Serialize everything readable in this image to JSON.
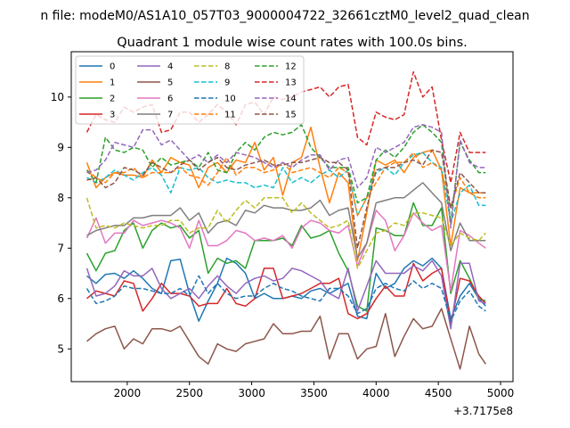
{
  "figure": {
    "suptitle": "n file: modeM0/AS1A10_057T03_9000004722_32661cztM0_level2_quad_clean",
    "title": "Quadrant 1 module wise count rates with 100.0s bins.",
    "offset_label": "+3.7175e8"
  },
  "chart_data": {
    "type": "line",
    "title": "Quadrant 1 module wise count rates with 100.0s bins.",
    "xlabel": "",
    "ylabel": "",
    "x_offset": 371750000,
    "xlim": [
      1550,
      5100
    ],
    "ylim": [
      4.35,
      10.9
    ],
    "x_ticks": [
      2000,
      2500,
      3000,
      3500,
      4000,
      4500,
      5000
    ],
    "y_ticks": [
      5,
      6,
      7,
      8,
      9,
      10
    ],
    "x_tick_labels": [
      "2000",
      "2500",
      "3000",
      "3500",
      "4000",
      "4500",
      "5000"
    ],
    "y_tick_labels": [
      "5",
      "6",
      "7",
      "8",
      "9",
      "10"
    ],
    "grid": false,
    "legend_position": "top-left",
    "x": [
      1675,
      1750,
      1825,
      1900,
      1975,
      2050,
      2125,
      2200,
      2275,
      2350,
      2425,
      2500,
      2575,
      2650,
      2725,
      2800,
      2875,
      2950,
      3025,
      3100,
      3175,
      3250,
      3325,
      3400,
      3475,
      3550,
      3625,
      3700,
      3775,
      3850,
      3925,
      4000,
      4075,
      4150,
      4225,
      4300,
      4375,
      4450,
      4525,
      4600,
      4675,
      4750,
      4825,
      4880
    ],
    "series": [
      {
        "name": "0",
        "color": "#1f77b4",
        "dash": false,
        "values": [
          6.45,
          6.3,
          6.48,
          6.5,
          6.4,
          6.55,
          6.4,
          6.2,
          6.1,
          6.75,
          6.78,
          6.1,
          5.55,
          5.95,
          6.3,
          6.8,
          6.7,
          6.5,
          6.0,
          6.1,
          6.0,
          6.0,
          6.05,
          6.0,
          6.15,
          6.2,
          6.1,
          6.2,
          6.3,
          5.65,
          5.6,
          6.5,
          6.2,
          6.3,
          6.6,
          6.75,
          6.65,
          6.8,
          6.6,
          5.6,
          6.05,
          6.3,
          6.0,
          5.85
        ]
      },
      {
        "name": "1",
        "color": "#ff7f0e",
        "dash": false,
        "values": [
          8.7,
          8.2,
          8.4,
          8.5,
          8.45,
          8.45,
          8.4,
          8.75,
          8.5,
          8.8,
          8.7,
          8.65,
          8.2,
          8.6,
          8.7,
          8.5,
          8.75,
          8.7,
          9.1,
          8.55,
          8.8,
          8.05,
          8.7,
          8.8,
          9.4,
          8.6,
          7.9,
          8.5,
          8.3,
          6.75,
          7.7,
          8.75,
          8.65,
          8.75,
          8.5,
          8.8,
          8.9,
          8.95,
          8.55,
          7.05,
          8.2,
          8.1,
          8.1,
          8.1
        ]
      },
      {
        "name": "2",
        "color": "#2ca02c",
        "dash": false,
        "values": [
          6.9,
          6.55,
          6.9,
          6.95,
          7.35,
          7.5,
          7.0,
          7.35,
          7.5,
          7.4,
          7.45,
          7.2,
          7.35,
          6.5,
          6.8,
          6.7,
          6.75,
          6.6,
          7.15,
          7.15,
          7.15,
          7.2,
          7.05,
          7.45,
          7.2,
          7.25,
          7.35,
          6.9,
          6.55,
          5.85,
          5.75,
          7.4,
          7.35,
          7.25,
          7.25,
          7.9,
          7.45,
          7.45,
          7.8,
          6.1,
          6.75,
          6.4,
          6.0,
          5.95
        ]
      },
      {
        "name": "3",
        "color": "#d62728",
        "dash": false,
        "values": [
          6.0,
          6.15,
          6.1,
          6.05,
          6.35,
          6.3,
          5.75,
          6.0,
          6.3,
          6.1,
          6.1,
          6.05,
          5.85,
          5.9,
          5.9,
          6.2,
          5.9,
          5.85,
          6.0,
          6.6,
          6.6,
          6.0,
          6.05,
          6.1,
          6.2,
          6.3,
          6.3,
          6.4,
          5.7,
          5.6,
          5.7,
          6.0,
          6.25,
          6.05,
          6.05,
          6.7,
          6.35,
          6.5,
          6.6,
          5.5,
          6.4,
          6.35,
          6.05,
          5.9
        ]
      },
      {
        "name": "4",
        "color": "#9467bd",
        "dash": false,
        "values": [
          6.6,
          6.05,
          6.1,
          6.25,
          6.55,
          6.45,
          6.45,
          6.6,
          6.2,
          6.0,
          6.1,
          6.2,
          6.0,
          6.25,
          6.45,
          6.25,
          6.1,
          6.3,
          6.4,
          6.45,
          6.35,
          6.4,
          6.6,
          6.55,
          6.45,
          6.35,
          6.1,
          6.0,
          6.6,
          5.75,
          6.25,
          6.75,
          6.5,
          6.5,
          6.5,
          6.65,
          6.55,
          6.75,
          6.45,
          5.4,
          6.7,
          6.7,
          5.95,
          5.9
        ]
      },
      {
        "name": "5",
        "color": "#8c564b",
        "dash": false,
        "values": [
          5.15,
          5.3,
          5.4,
          5.45,
          5.0,
          5.2,
          5.1,
          5.4,
          5.4,
          5.35,
          5.45,
          5.15,
          4.85,
          4.7,
          5.1,
          5.0,
          4.95,
          5.1,
          5.15,
          5.2,
          5.5,
          5.3,
          5.3,
          5.35,
          5.35,
          5.65,
          4.8,
          5.3,
          5.3,
          4.8,
          5.0,
          5.05,
          5.7,
          4.85,
          5.25,
          5.6,
          5.4,
          5.45,
          5.8,
          5.2,
          4.6,
          5.45,
          4.9,
          4.7
        ]
      },
      {
        "name": "6",
        "color": "#e377c2",
        "dash": false,
        "values": [
          7.2,
          7.6,
          7.1,
          7.3,
          7.3,
          7.55,
          7.45,
          7.5,
          7.55,
          7.5,
          7.4,
          7.0,
          7.55,
          7.05,
          7.05,
          7.15,
          7.35,
          7.3,
          7.15,
          7.2,
          7.15,
          7.25,
          7.0,
          7.4,
          7.55,
          7.5,
          7.35,
          7.3,
          7.45,
          6.65,
          7.1,
          7.75,
          7.55,
          6.95,
          7.25,
          7.7,
          7.5,
          7.35,
          7.45,
          6.15,
          7.35,
          7.25,
          7.1,
          7.0
        ]
      },
      {
        "name": "7",
        "color": "#7f7f7f",
        "dash": false,
        "values": [
          7.25,
          7.35,
          7.4,
          7.45,
          7.45,
          7.6,
          7.6,
          7.65,
          7.65,
          7.65,
          7.8,
          7.55,
          7.7,
          7.3,
          7.5,
          7.55,
          7.45,
          7.75,
          7.7,
          7.85,
          7.8,
          7.8,
          7.75,
          7.75,
          7.8,
          7.95,
          7.65,
          7.75,
          7.8,
          6.8,
          7.1,
          7.9,
          7.95,
          8.0,
          8.0,
          8.15,
          8.3,
          8.1,
          7.9,
          6.95,
          7.5,
          7.15,
          7.15,
          7.15
        ]
      },
      {
        "name": "8",
        "color": "#bcbd22",
        "dash": true,
        "values": [
          8.0,
          7.4,
          7.45,
          7.4,
          7.5,
          7.45,
          7.4,
          7.45,
          7.45,
          7.55,
          7.55,
          7.3,
          7.4,
          7.4,
          7.75,
          7.5,
          7.75,
          7.95,
          7.8,
          8.0,
          8.0,
          8.0,
          7.7,
          7.9,
          7.7,
          7.55,
          7.4,
          7.45,
          7.55,
          6.6,
          6.95,
          7.3,
          7.35,
          7.5,
          7.45,
          7.7,
          7.7,
          7.65,
          7.6,
          7.05,
          7.3,
          7.2,
          7.15,
          7.3
        ]
      },
      {
        "name": "9",
        "color": "#17becf",
        "dash": true,
        "values": [
          8.4,
          8.3,
          8.4,
          8.55,
          8.45,
          8.35,
          8.5,
          8.6,
          8.45,
          8.1,
          8.6,
          8.55,
          8.6,
          8.4,
          8.3,
          8.35,
          8.3,
          8.3,
          8.2,
          8.25,
          8.2,
          8.6,
          8.3,
          8.4,
          8.3,
          8.45,
          8.55,
          8.4,
          8.55,
          7.65,
          8.0,
          8.5,
          8.6,
          8.45,
          8.7,
          8.85,
          8.9,
          8.7,
          8.6,
          7.5,
          8.1,
          8.25,
          7.85,
          7.85
        ]
      },
      {
        "name": "10",
        "color": "#1f77b4",
        "dash": true,
        "values": [
          6.2,
          5.9,
          5.95,
          6.05,
          6.25,
          6.2,
          6.2,
          6.15,
          6.1,
          6.1,
          6.2,
          6.05,
          6.45,
          6.1,
          6.3,
          6.1,
          6.0,
          6.05,
          6.05,
          6.2,
          6.3,
          6.2,
          6.15,
          6.05,
          6.0,
          5.95,
          6.2,
          6.2,
          6.05,
          5.7,
          5.8,
          6.2,
          6.3,
          6.2,
          6.15,
          6.35,
          6.2,
          6.3,
          6.2,
          5.55,
          5.95,
          6.15,
          5.85,
          5.75
        ]
      },
      {
        "name": "11",
        "color": "#ff7f0e",
        "dash": true,
        "values": [
          8.55,
          8.4,
          8.3,
          8.5,
          8.5,
          8.6,
          8.4,
          8.5,
          8.5,
          8.5,
          8.6,
          8.45,
          8.4,
          8.25,
          8.5,
          8.8,
          8.45,
          8.6,
          8.6,
          8.5,
          8.55,
          8.7,
          8.5,
          8.55,
          8.6,
          8.5,
          8.4,
          8.6,
          8.5,
          7.65,
          8.0,
          8.3,
          8.6,
          8.7,
          8.7,
          8.9,
          8.6,
          8.7,
          8.55,
          7.8,
          8.4,
          8.1,
          8.0,
          8.0
        ]
      },
      {
        "name": "12",
        "color": "#2ca02c",
        "dash": true,
        "values": [
          8.55,
          8.3,
          9.2,
          8.95,
          8.9,
          9.0,
          8.95,
          8.6,
          8.8,
          8.65,
          8.7,
          8.75,
          8.6,
          8.9,
          8.55,
          8.5,
          8.9,
          9.1,
          8.95,
          9.2,
          9.3,
          9.25,
          9.3,
          9.45,
          9.0,
          8.8,
          8.6,
          8.6,
          8.6,
          7.9,
          8.0,
          8.75,
          8.95,
          8.8,
          9.0,
          9.3,
          9.45,
          9.3,
          9.1,
          7.5,
          9.1,
          8.75,
          8.5,
          8.5
        ]
      },
      {
        "name": "13",
        "color": "#d62728",
        "dash": true,
        "values": [
          9.3,
          9.65,
          9.55,
          9.5,
          9.8,
          9.7,
          9.8,
          9.85,
          9.3,
          9.35,
          9.7,
          9.7,
          9.5,
          9.65,
          9.85,
          9.7,
          9.45,
          9.85,
          9.9,
          9.65,
          10.0,
          9.95,
          10.0,
          10.1,
          10.15,
          10.2,
          10.0,
          10.2,
          10.25,
          9.2,
          9.05,
          9.7,
          9.6,
          9.55,
          9.65,
          10.5,
          10.0,
          10.2,
          9.15,
          8.3,
          9.3,
          8.9,
          8.9,
          8.9
        ]
      },
      {
        "name": "14",
        "color": "#9467bd",
        "dash": true,
        "values": [
          8.5,
          8.55,
          8.75,
          9.1,
          9.05,
          9.0,
          9.35,
          9.35,
          9.05,
          9.15,
          8.95,
          8.75,
          8.85,
          8.7,
          8.85,
          8.7,
          8.9,
          8.85,
          8.8,
          8.7,
          8.6,
          8.7,
          8.6,
          8.75,
          8.85,
          8.85,
          8.55,
          8.75,
          8.8,
          8.2,
          8.4,
          9.0,
          8.9,
          9.0,
          9.1,
          9.4,
          9.45,
          9.4,
          9.3,
          7.4,
          9.15,
          8.7,
          8.6,
          8.6
        ]
      },
      {
        "name": "15",
        "color": "#8c564b",
        "dash": true,
        "values": [
          8.35,
          8.4,
          8.2,
          8.3,
          8.6,
          8.55,
          8.45,
          8.7,
          8.6,
          8.5,
          8.65,
          8.75,
          8.55,
          8.7,
          8.8,
          8.6,
          8.55,
          8.65,
          8.7,
          8.75,
          8.65,
          8.65,
          8.7,
          8.7,
          8.75,
          8.8,
          8.7,
          8.7,
          8.55,
          7.0,
          7.8,
          8.55,
          8.6,
          8.6,
          8.7,
          8.75,
          8.65,
          8.95,
          8.9,
          7.8,
          8.5,
          8.3,
          8.1,
          8.1
        ]
      }
    ]
  }
}
